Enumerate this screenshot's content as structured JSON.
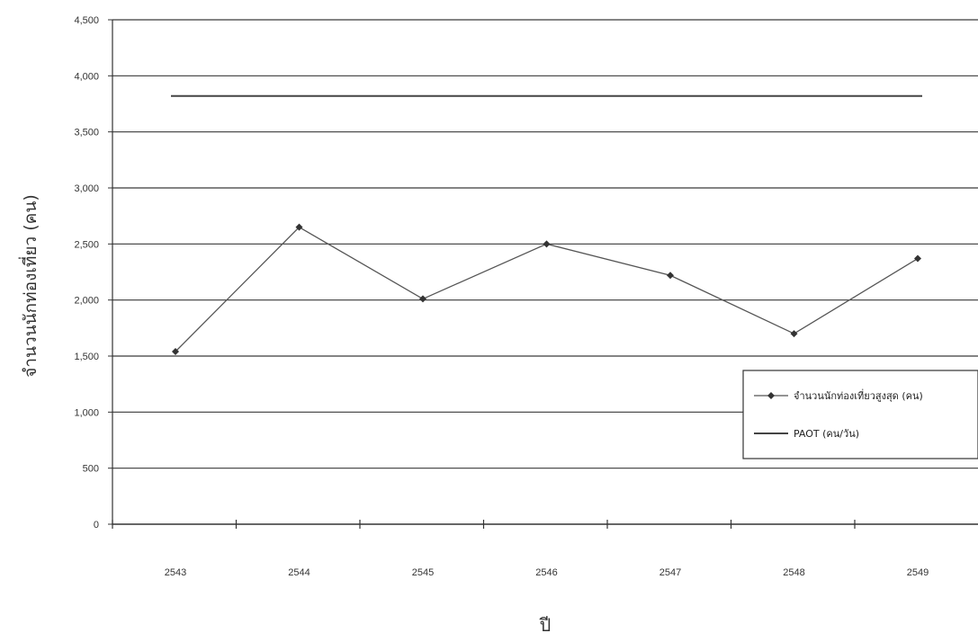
{
  "chart_data": {
    "type": "line",
    "xlabel": "ปี",
    "ylabel": "จำนวนนักท่องเที่ยว (คน)",
    "categories": [
      "2543",
      "2544",
      "2545",
      "2546",
      "2547",
      "2548",
      "2549"
    ],
    "ylim": [
      0,
      4500
    ],
    "yticks": [
      0,
      500,
      1000,
      1500,
      2000,
      2500,
      3000,
      3500,
      4000,
      4500
    ],
    "ytick_labels": [
      "0",
      "500",
      "1,000",
      "1,500",
      "2,000",
      "2,500",
      "3,000",
      "3,500",
      "4,000",
      "4,500"
    ],
    "grid": true,
    "legend_position": "right",
    "series": [
      {
        "name": "จำนวนนักท่องเที่ยวสูงสุด (คน)",
        "values": [
          1540,
          2650,
          2010,
          2500,
          2220,
          1700,
          2370
        ],
        "color": "#555555",
        "marker": "diamond"
      },
      {
        "name": "PAOT (คน/วัน)",
        "values": [
          3820,
          3820,
          3820,
          3820,
          3820,
          3820,
          3820
        ],
        "color": "#444444",
        "marker": "none"
      }
    ]
  }
}
